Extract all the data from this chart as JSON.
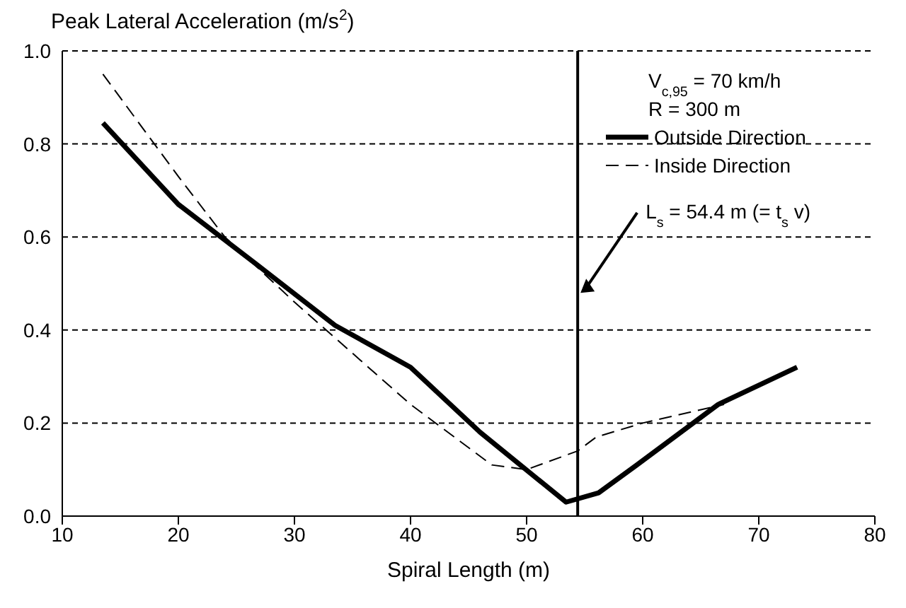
{
  "chart_data": {
    "type": "line",
    "ylabel": "Peak Lateral Acceleration (m/s$^{2}$)",
    "xlabel": "Spiral Length (m)",
    "annotations": [
      "V$_{c,95}$ = 70 km/h",
      "R = 300 m"
    ],
    "series": [
      {
        "name": "Outside Direction",
        "color": "#000000",
        "line_style": "solid",
        "x": [
          13.5,
          20,
          26.8,
          33.5,
          40,
          46,
          53.4,
          56.2,
          59.5,
          66.5,
          73.3
        ],
        "values": [
          0.845,
          0.67,
          0.54,
          0.41,
          0.32,
          0.18,
          0.03,
          0.05,
          0.11,
          0.24,
          0.32
        ]
      },
      {
        "name": "Inside Direction",
        "color": "#000000",
        "line_style": "dashed",
        "x": [
          13.5,
          20,
          24,
          30,
          40,
          47,
          50,
          54.4,
          56,
          60,
          67
        ],
        "values": [
          0.95,
          0.73,
          0.6,
          0.46,
          0.24,
          0.11,
          0.1,
          0.14,
          0.17,
          0.2,
          0.24
        ]
      }
    ],
    "ref_lines": [
      {
        "axis": "x",
        "value": 54.4,
        "label": "L$_{s}$ = 54.4 m (= t$_{s}$ v)",
        "color": "#000000"
      }
    ],
    "xlim": [
      10,
      80
    ],
    "xticks": [
      10,
      20,
      30,
      40,
      50,
      60,
      70,
      80
    ],
    "ylim": [
      0,
      1
    ],
    "yticks": [
      {
        "value": 0,
        "label": "0.0"
      },
      {
        "value": 0.2,
        "label": "0.2"
      },
      {
        "value": 0.4,
        "label": "0.4"
      },
      {
        "value": 0.6,
        "label": "0.6"
      },
      {
        "value": 0.8,
        "label": "0.8"
      },
      {
        "value": 1,
        "label": "1.0"
      }
    ],
    "grid": "y",
    "legend": "top right",
    "marker": "none"
  }
}
